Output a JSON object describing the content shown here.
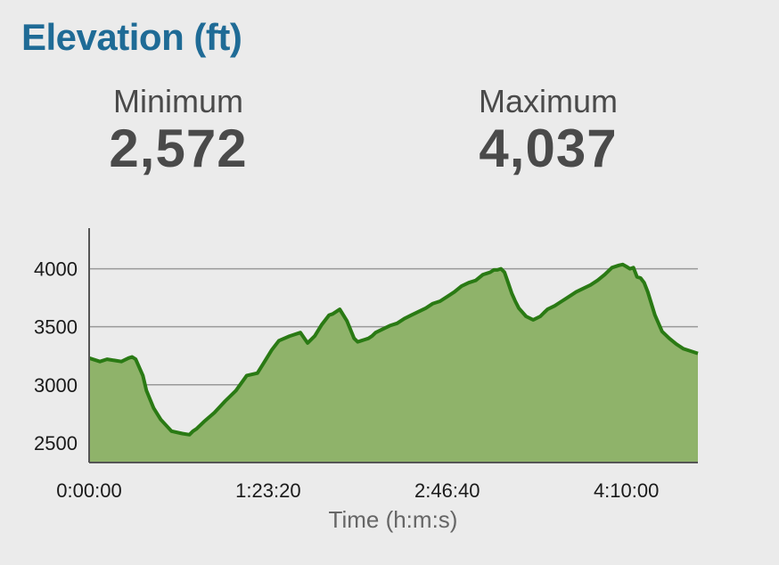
{
  "header": {
    "title": "Elevation (ft)"
  },
  "stats": {
    "minimum": {
      "label": "Minimum",
      "value": "2,572"
    },
    "maximum": {
      "label": "Maximum",
      "value": "4,037"
    }
  },
  "colors": {
    "title": "#1f6b96",
    "line": "#2a7a14",
    "fill": "#8fb36a",
    "grid": "#999999"
  },
  "chart_data": {
    "type": "area",
    "title": "",
    "xlabel": "Time (h:m:s)",
    "ylabel": "",
    "x_tick_labels": [
      "0:00:00",
      "1:23:20",
      "2:46:40",
      "4:10:00"
    ],
    "x_tick_values": [
      0,
      5000,
      10000,
      15000
    ],
    "y_ticks": [
      2500,
      3000,
      3500,
      4000
    ],
    "xlim": [
      0,
      17000
    ],
    "ylim": [
      2330,
      4350
    ],
    "grid": true,
    "series": [
      {
        "x": [
          0,
          300,
          500,
          700,
          900,
          1100,
          1200,
          1300,
          1500,
          1600,
          1800,
          2000,
          2300,
          2600,
          2800,
          2900,
          3000,
          3200,
          3500,
          3800,
          4100,
          4400,
          4700,
          4900,
          5100,
          5300,
          5600,
          5900,
          6100,
          6300,
          6500,
          6700,
          6800,
          7000,
          7200,
          7400,
          7500,
          7600,
          7700,
          7800,
          7900,
          8000,
          8200,
          8400,
          8600,
          8800,
          9000,
          9200,
          9400,
          9600,
          9800,
          10000,
          10200,
          10400,
          10600,
          10800,
          11000,
          11100,
          11200,
          11300,
          11400,
          11500,
          11600,
          11700,
          11800,
          11900,
          12000,
          12200,
          12400,
          12600,
          12700,
          12800,
          13000,
          13200,
          13400,
          13600,
          13800,
          14000,
          14200,
          14400,
          14600,
          14800,
          14900,
          15000,
          15100,
          15200,
          15300,
          15400,
          15500,
          15600,
          15700,
          15800,
          16000,
          16200,
          16400,
          16600,
          16800,
          17000
        ],
        "y": [
          3230,
          3200,
          3220,
          3210,
          3200,
          3230,
          3240,
          3220,
          3080,
          2950,
          2800,
          2700,
          2600,
          2580,
          2570,
          2600,
          2620,
          2680,
          2760,
          2860,
          2950,
          3080,
          3100,
          3200,
          3300,
          3380,
          3420,
          3450,
          3360,
          3420,
          3520,
          3600,
          3610,
          3650,
          3550,
          3400,
          3370,
          3380,
          3390,
          3400,
          3420,
          3450,
          3480,
          3510,
          3530,
          3570,
          3600,
          3630,
          3660,
          3700,
          3720,
          3760,
          3800,
          3850,
          3880,
          3900,
          3950,
          3960,
          3970,
          3990,
          3990,
          4000,
          3970,
          3880,
          3790,
          3720,
          3660,
          3590,
          3560,
          3590,
          3620,
          3650,
          3680,
          3720,
          3760,
          3800,
          3830,
          3860,
          3900,
          3950,
          4010,
          4030,
          4037,
          4020,
          4000,
          4010,
          3930,
          3920,
          3880,
          3800,
          3700,
          3600,
          3460,
          3400,
          3350,
          3310,
          3290,
          3270
        ]
      }
    ]
  }
}
